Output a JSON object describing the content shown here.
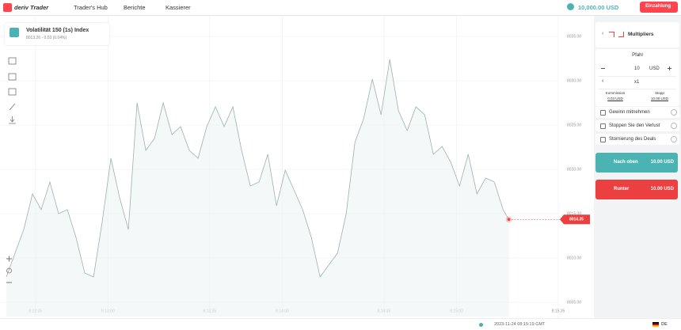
{
  "header": {
    "logo": "deriv Trader",
    "nav": [
      "Trader's Hub",
      "Berichte",
      "Kassierer"
    ],
    "balance": "10,000.00 USD",
    "deposit": "Einzahlung"
  },
  "chart_info": {
    "symbol": "Volatilität 150 (1s) Index",
    "quote": "8013.26 - 0.03 (0.04%)"
  },
  "chart_data": {
    "type": "line",
    "color": "#9fb0ad",
    "marker_color": "#ec3f3f",
    "grid": true,
    "x": [
      "8:12:25",
      "8:12:28",
      "8:12:31",
      "8:12:34",
      "8:12:37",
      "8:12:40",
      "8:12:43",
      "8:12:46",
      "8:12:49",
      "8:12:52",
      "8:12:55",
      "8:12:58",
      "8:13:01",
      "8:13:04",
      "8:13:07",
      "8:13:10",
      "8:13:13",
      "8:13:16",
      "8:13:19",
      "8:13:22",
      "8:13:25",
      "8:13:28",
      "8:13:31",
      "8:13:34",
      "8:13:37",
      "8:13:40",
      "8:13:43",
      "8:13:46",
      "8:13:49",
      "8:13:52",
      "8:13:55",
      "8:13:58",
      "8:14:01",
      "8:14:04",
      "8:14:07",
      "8:14:10",
      "8:14:13",
      "8:14:16",
      "8:14:19",
      "8:14:22",
      "8:14:25",
      "8:14:28",
      "8:14:31",
      "8:14:34",
      "8:14:37",
      "8:14:40",
      "8:14:43",
      "8:14:46",
      "8:14:49",
      "8:14:52",
      "8:14:55",
      "8:14:58",
      "8:15:01",
      "8:15:04",
      "8:15:07",
      "8:15:10",
      "8:15:13",
      "8:15:16",
      "8:15:18"
    ],
    "values": [
      8007.86,
      8010.54,
      8013.21,
      8017.23,
      8015.45,
      8018.57,
      8015.0,
      8015.45,
      8012.32,
      8008.3,
      8007.86,
      8014.11,
      8021.25,
      8016.79,
      8013.21,
      8027.5,
      8022.14,
      8023.48,
      8027.5,
      8023.93,
      8024.82,
      8022.14,
      8021.25,
      8024.82,
      8027.05,
      8024.82,
      8027.05,
      8022.14,
      8018.12,
      8018.57,
      8021.7,
      8015.89,
      8019.91,
      8017.68,
      8015.45,
      8012.32,
      8007.86,
      8009.2,
      8010.54,
      8015.0,
      8023.04,
      8025.71,
      8030.18,
      8026.16,
      8032.41,
      8026.61,
      8024.37,
      8027.05,
      8026.16,
      8021.7,
      8022.59,
      8020.8,
      8018.12,
      8021.7,
      8017.23,
      8019.02,
      8018.57,
      8015.45,
      8014.35
    ],
    "xlim": [
      "8:12:25",
      "8:15:35"
    ],
    "xticks": [
      "8:12:35",
      "8:13:00",
      "8:13:35",
      "8:14:00",
      "8:14:35",
      "8:15:00",
      "8:15:35"
    ],
    "ylim": [
      8003.39,
      8037.32
    ],
    "yticks": [
      {
        "value": 8005,
        "label": "8005.00"
      },
      {
        "value": 8010,
        "label": "8010.00"
      },
      {
        "value": 8015,
        "label": "8015.00"
      },
      {
        "value": 8020,
        "label": "8020.00"
      },
      {
        "value": 8025,
        "label": "8025.00"
      },
      {
        "value": 8030,
        "label": "8030.00"
      },
      {
        "value": 8035,
        "label": "8035.00"
      }
    ]
  },
  "trade_panel": {
    "trade_type": "Multipliers",
    "stake_label": "Pfahl",
    "stake": "10",
    "currency": "USD",
    "multiplier": "x1",
    "commission_label": "Kommission",
    "commission": "0.03 USD",
    "stop_out_label": "Stopp",
    "stop_out": "10.00 USD",
    "options": [
      "Gewinn mitnehmen",
      "Stoppen Sie den Verlust",
      "Stornierung des Deals"
    ],
    "buy_up": {
      "label": "Nach oben",
      "amount": "10.00 USD"
    },
    "buy_down": {
      "label": "Runter",
      "amount": "10.00 USD"
    }
  },
  "footer": {
    "timestamp": "2023-11-24 08:15:19 GMT",
    "language": "DE"
  }
}
